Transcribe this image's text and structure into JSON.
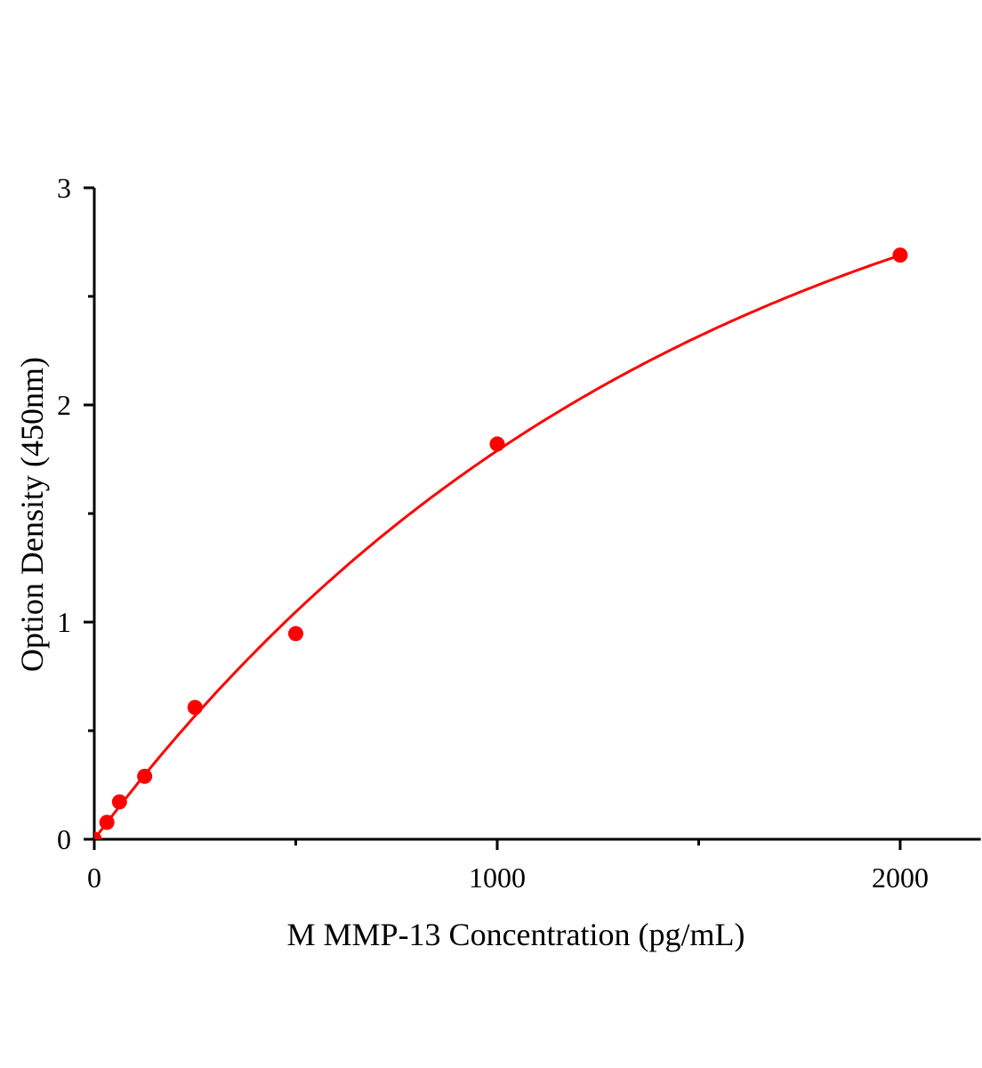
{
  "chart_data": {
    "type": "scatter",
    "title": "",
    "xlabel": "M MMP-13 Concentration (pg/mL)",
    "ylabel": "Option Density (450nm)",
    "xlim": [
      0,
      2200
    ],
    "ylim": [
      0,
      3
    ],
    "x_ticks": [
      0,
      1000,
      2000
    ],
    "x_tick_labels": [
      "0",
      "1000",
      "2000"
    ],
    "x_minor_ticks": [
      500,
      1500
    ],
    "y_ticks": [
      0,
      1,
      2,
      3
    ],
    "y_tick_labels": [
      "0",
      "1",
      "2",
      "3"
    ],
    "y_minor_ticks": [
      0.5,
      1.5,
      2.5
    ],
    "grid": false,
    "series": [
      {
        "x": [
          0,
          31.25,
          62.5,
          125,
          250,
          500,
          1000,
          2000
        ],
        "y": [
          0.0,
          0.078,
          0.172,
          0.29,
          0.607,
          0.947,
          1.82,
          2.69
        ],
        "color": "#ff0000",
        "fit_line": true
      }
    ]
  }
}
